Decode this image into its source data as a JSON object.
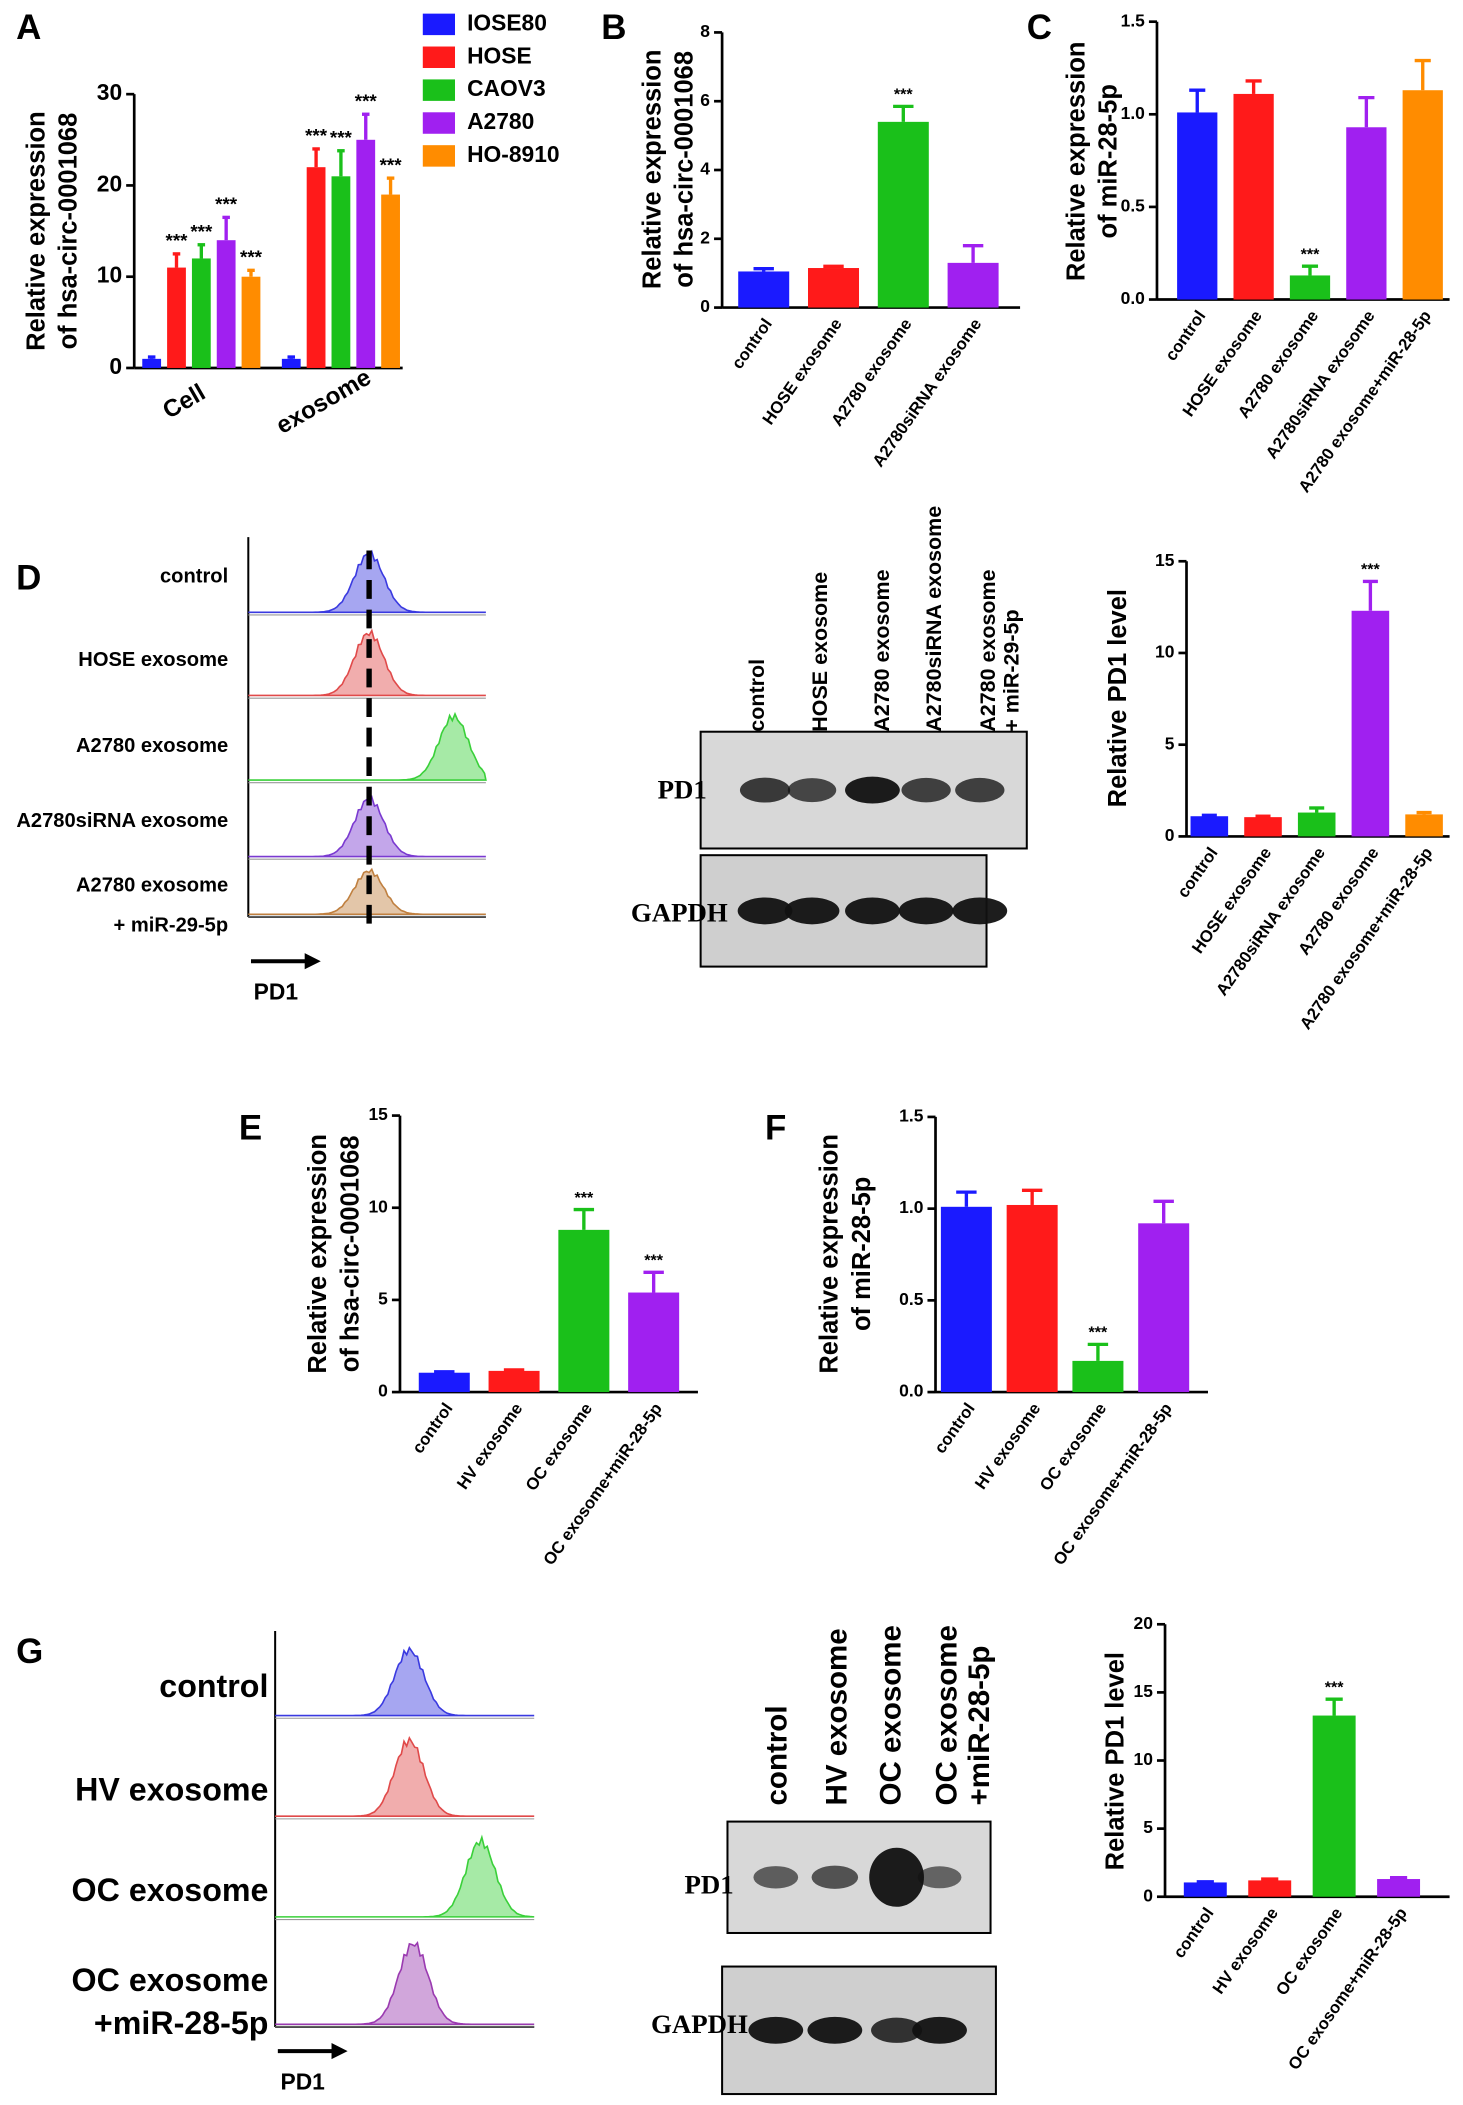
{
  "chart_data": [
    {
      "panel": "A",
      "type": "grouped_bar",
      "ylabel": [
        "Relative expression",
        "of hsa-circ-0001068"
      ],
      "categories": [
        "Cell",
        "exosome"
      ],
      "series": [
        {
          "name": "IOSE80",
          "color": "#1a1aff",
          "values": [
            1,
            1
          ],
          "errors": [
            0.2,
            0.2
          ],
          "significance": [
            null,
            null
          ]
        },
        {
          "name": "HOSE",
          "color": "#ff1a1a",
          "values": [
            11,
            22
          ],
          "errors": [
            1.5,
            2
          ],
          "significance": [
            "***",
            "***"
          ]
        },
        {
          "name": "CAOV3",
          "color": "#1ac01a",
          "values": [
            12,
            21
          ],
          "errors": [
            1.5,
            2.8
          ],
          "significance": [
            "***",
            "***"
          ]
        },
        {
          "name": "A2780",
          "color": "#a020f0",
          "values": [
            14,
            25
          ],
          "errors": [
            2.5,
            2.8
          ],
          "significance": [
            "***",
            "***"
          ]
        },
        {
          "name": "HO-8910",
          "color": "#ff8c00",
          "values": [
            10,
            19
          ],
          "errors": [
            0.7,
            1.8
          ],
          "significance": [
            "***",
            "***"
          ]
        }
      ],
      "ylim": [
        0,
        30
      ],
      "yticks": [
        0,
        10,
        20,
        30
      ]
    },
    {
      "panel": "B",
      "type": "bar",
      "ylabel": [
        "Relative expression",
        "of hsa-circ-0001068"
      ],
      "categories": [
        "control",
        "HOSE exosome",
        "A2780 exosome",
        "A2780siRNA exosome"
      ],
      "values": [
        1.05,
        1.15,
        5.4,
        1.3
      ],
      "errors": [
        0.08,
        0.05,
        0.45,
        0.5
      ],
      "significance": [
        null,
        null,
        "***",
        null
      ],
      "colors": [
        "#1a1aff",
        "#ff1a1a",
        "#1ac01a",
        "#a020f0"
      ],
      "ylim": [
        0,
        8
      ],
      "yticks": [
        0,
        2,
        4,
        6,
        8
      ]
    },
    {
      "panel": "C",
      "type": "bar",
      "ylabel": [
        "Relative expression",
        "of miR-28-5p"
      ],
      "categories": [
        "control",
        "HOSE exosome",
        "A2780 exosome",
        "A2780siRNA exosome",
        "A2780 exosome+miR-28-5p"
      ],
      "values": [
        1.01,
        1.11,
        0.13,
        0.93,
        1.13
      ],
      "errors": [
        0.12,
        0.07,
        0.05,
        0.16,
        0.16
      ],
      "significance": [
        null,
        null,
        "***",
        null,
        null
      ],
      "colors": [
        "#1a1aff",
        "#ff1a1a",
        "#1ac01a",
        "#a020f0",
        "#ff8c00"
      ],
      "ylim": [
        0,
        1.5
      ],
      "yticks": [
        {
          "value": 0,
          "label": "0.0"
        },
        0.5,
        {
          "value": 1,
          "label": "1.0"
        },
        1.5
      ]
    },
    {
      "type": "bar",
      "ylabel": [
        "Relative PD1 level"
      ],
      "categories": [
        "control",
        "HOSE exosome",
        "A2780siRNA exosome",
        "A2780 exosome",
        "A2780 exosome+miR-28-5p"
      ],
      "values": [
        1.1,
        1.05,
        1.3,
        12.3,
        1.2
      ],
      "errors": [
        0.05,
        0.05,
        0.25,
        1.6,
        0.1
      ],
      "significance": [
        null,
        null,
        null,
        "***",
        null
      ],
      "colors": [
        "#1a1aff",
        "#ff1a1a",
        "#1ac01a",
        "#a020f0",
        "#ff8c00"
      ],
      "ylim": [
        0,
        15
      ],
      "yticks": [
        0,
        5,
        10,
        15
      ]
    },
    {
      "panel": "E",
      "type": "bar",
      "ylabel": [
        "Relative expression",
        "of hsa-circ-0001068"
      ],
      "categories": [
        "control",
        "HV exosome",
        "OC exosome",
        "OC exosome+miR-28-5p"
      ],
      "values": [
        1.05,
        1.15,
        8.8,
        5.4
      ],
      "errors": [
        0.05,
        0.05,
        1.1,
        1.1
      ],
      "significance": [
        null,
        null,
        "***",
        "***"
      ],
      "colors": [
        "#1a1aff",
        "#ff1a1a",
        "#1ac01a",
        "#a020f0"
      ],
      "ylim": [
        0,
        15
      ],
      "yticks": [
        0,
        5,
        10,
        15
      ]
    },
    {
      "panel": "F",
      "type": "bar",
      "ylabel": [
        "Relative expression",
        "of miR-28-5p"
      ],
      "categories": [
        "control",
        "HV exosome",
        "OC exosome",
        "OC exosome+miR-28-5p"
      ],
      "values": [
        1.01,
        1.02,
        0.17,
        0.92
      ],
      "errors": [
        0.08,
        0.08,
        0.09,
        0.12
      ],
      "significance": [
        null,
        null,
        "***",
        null
      ],
      "colors": [
        "#1a1aff",
        "#ff1a1a",
        "#1ac01a",
        "#a020f0"
      ],
      "ylim": [
        0,
        1.5
      ],
      "yticks": [
        {
          "value": 0,
          "label": "0.0"
        },
        0.5,
        {
          "value": 1,
          "label": "1.0"
        },
        1.5
      ]
    },
    {
      "type": "bar",
      "ylabel": [
        "Relative PD1 level"
      ],
      "categories": [
        "control",
        "HV exosome",
        "OC exosome",
        "OC exosome+miR-28-5p"
      ],
      "values": [
        1.05,
        1.2,
        13.3,
        1.3
      ],
      "errors": [
        0.05,
        0.1,
        1.2,
        0.1
      ],
      "significance": [
        null,
        null,
        "***",
        null
      ],
      "colors": [
        "#1a1aff",
        "#ff1a1a",
        "#1ac01a",
        "#a020f0"
      ],
      "ylim": [
        0,
        20
      ],
      "yticks": [
        0,
        5,
        10,
        15,
        20
      ]
    }
  ],
  "flow_panels": [
    {
      "panel": "D",
      "labels": [
        [
          "control"
        ],
        [
          "HOSE exosome"
        ],
        [
          "A2780 exosome"
        ],
        [
          "A2780siRNA exosome"
        ],
        [
          "A2780  exosome",
          "+ miR-29-5p"
        ]
      ],
      "axis_label": "PD1"
    },
    {
      "panel": "G",
      "labels": [
        [
          "control"
        ],
        [
          "HV exosome"
        ],
        [
          "OC exosome"
        ],
        [
          "OC exosome",
          "+miR-28-5p"
        ]
      ],
      "axis_label": "PD1"
    }
  ],
  "blots": [
    {
      "lanes": [
        [
          "control"
        ],
        [
          "HOSE exosome"
        ],
        [
          "A2780 exosome"
        ],
        [
          "A2780siRNA exosome"
        ],
        [
          "A2780  exosome",
          "+ miR-29-5p"
        ]
      ],
      "rows": [
        "PD1",
        "GAPDH"
      ]
    },
    {
      "lanes": [
        [
          "control"
        ],
        [
          "HV exosome"
        ],
        [
          "OC exosome"
        ],
        [
          "OC exosome",
          "+miR-28-5p"
        ]
      ],
      "rows": [
        "PD1",
        "GAPDH"
      ]
    }
  ]
}
